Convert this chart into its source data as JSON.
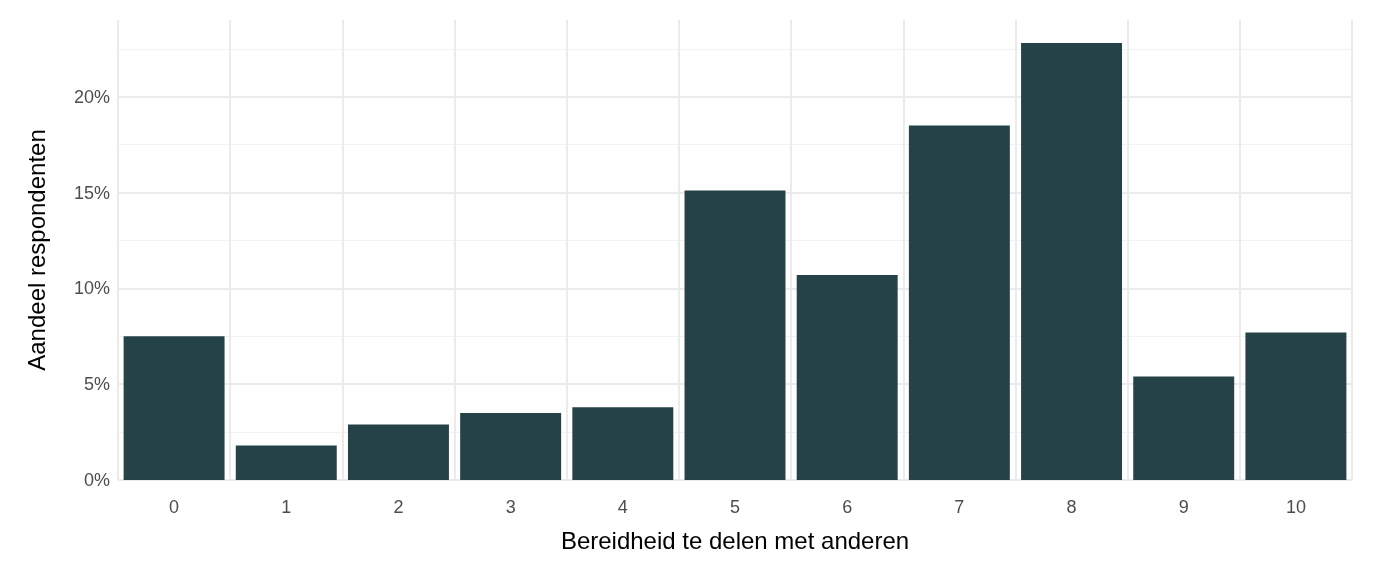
{
  "chart_data": {
    "type": "bar",
    "xlabel": "Bereidheid te delen met anderen",
    "ylabel": "Aandeel respondenten",
    "categories": [
      "0",
      "1",
      "2",
      "3",
      "4",
      "5",
      "6",
      "7",
      "8",
      "9",
      "10"
    ],
    "values": [
      7.5,
      1.8,
      2.9,
      3.5,
      3.8,
      15.1,
      10.7,
      18.5,
      22.8,
      5.4,
      7.7
    ],
    "color": "#264249",
    "ylim": [
      0,
      24
    ],
    "yticks": [
      {
        "value": 0,
        "label": "0%"
      },
      {
        "value": 5,
        "label": "5%"
      },
      {
        "value": 10,
        "label": "10%"
      },
      {
        "value": 15,
        "label": "15%"
      },
      {
        "value": 20,
        "label": "20%"
      }
    ],
    "grid": true
  }
}
